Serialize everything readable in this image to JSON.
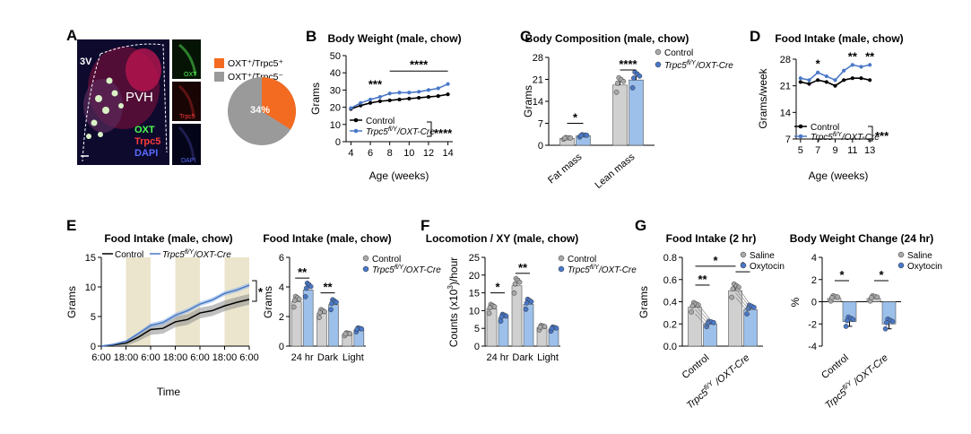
{
  "figure": {
    "colors": {
      "control": "#000000",
      "cre": "#4a78c8",
      "cre_fill": "#9cc0ea",
      "bar_gray": "#d0d0d0",
      "dot_gray": "#a9a9a9",
      "shade": "#ece5cd",
      "orange": "#f26b21",
      "pie_gray": "#9a9a9a"
    }
  },
  "panelA": {
    "letter": "A",
    "labels": {
      "v3": "3V",
      "pvh": "PVH",
      "oxt": "OXT",
      "trpc5": "Trpc5",
      "dapi": "DAPI",
      "thumb_oxt": "OXT",
      "thumb_trpc5": "Trpc5",
      "thumb_dapi": "DAPI"
    },
    "pie": {
      "legend_pos": "OXT⁺/Trpc5⁺",
      "legend_neg": "OXT⁺/Trpc5⁻",
      "pos_percent": 34,
      "pos_label": "34%"
    }
  },
  "chart_data": [
    {
      "id": "B",
      "type": "line",
      "letter": "B",
      "title": "Body Weight (male, chow)",
      "xlabel": "Age (weeks)",
      "ylabel": "Grams",
      "x": [
        4,
        5,
        6,
        7,
        8,
        9,
        10,
        11,
        12,
        13,
        14
      ],
      "xlim": [
        3.5,
        14.5
      ],
      "ylim": [
        0,
        50
      ],
      "xticks": [
        "4",
        "6",
        "8",
        "10",
        "12",
        "14"
      ],
      "yticks": [
        "0",
        "10",
        "20",
        "30",
        "40",
        "50"
      ],
      "series": [
        {
          "name": "Control",
          "values": [
            19,
            21,
            22.5,
            23.5,
            24,
            24.5,
            25,
            25.5,
            26,
            26.5,
            27.5
          ]
        },
        {
          "name": "Trpc5fl/Y/OXT-Cre",
          "prefix": "Trpc5",
          "sup": "fl/Y",
          "suffix": "/OXT-Cre",
          "values": [
            19.5,
            22.5,
            24.5,
            26,
            28,
            28.5,
            28.5,
            29,
            30,
            31,
            33.5
          ]
        }
      ],
      "annotations": {
        "early": "***",
        "range": "****",
        "overall": "****"
      },
      "legend": "bottom-left"
    },
    {
      "id": "C",
      "type": "bar",
      "letter": "C",
      "title": "Body Composition (male, chow)",
      "ylabel": "Grams",
      "categories": [
        "Fat mass",
        "Lean mass"
      ],
      "ylim": [
        0,
        28
      ],
      "yticks": [
        "0",
        "7",
        "14",
        "21",
        "28"
      ],
      "series": [
        {
          "name": "Control",
          "values": [
            2.2,
            19.2
          ]
        },
        {
          "name": "Trpc5fl/Y/OXT-Cre",
          "prefix": "Trpc5",
          "sup": "fl/Y",
          "suffix": "/OXT-Cre",
          "values": [
            3.0,
            20.8
          ]
        }
      ],
      "annotations": {
        "fat": "*",
        "lean": "****"
      },
      "legend": "top-right"
    },
    {
      "id": "D",
      "type": "line",
      "letter": "D",
      "title": "Food Intake (male, chow)",
      "xlabel": "Age (weeks)",
      "ylabel": "Grams/week",
      "x": [
        5,
        6,
        7,
        8,
        9,
        10,
        11,
        12,
        13
      ],
      "xlim": [
        4.5,
        13.5
      ],
      "ylim": [
        7,
        28
      ],
      "xticks": [
        "5",
        "7",
        "9",
        "11",
        "13"
      ],
      "yticks": [
        "7",
        "14",
        "21",
        "28"
      ],
      "series": [
        {
          "name": "Control",
          "values": [
            22,
            21.5,
            22.5,
            22,
            21,
            22.5,
            23,
            23,
            22.5
          ]
        },
        {
          "name": "Trpc5fl/Y/OXT-Cre",
          "prefix": "Trpc5",
          "sup": "fl/Y",
          "suffix": "/OXT-Cre",
          "values": [
            23,
            22.5,
            24.5,
            23.5,
            22.5,
            25,
            26.5,
            26,
            26.5
          ]
        }
      ],
      "annotations": {
        "w7": "*",
        "w11": "**",
        "w13": "**",
        "overall": "***"
      },
      "legend": "bottom-left"
    },
    {
      "id": "E1",
      "type": "area",
      "letter": "E",
      "title": "Food Intake (male, chow)",
      "xlabel": "Time",
      "ylabel": "Grams",
      "x": [
        0,
        6,
        12,
        18,
        24,
        30,
        36,
        42,
        48,
        54,
        60,
        66,
        72
      ],
      "xlim": [
        0,
        72
      ],
      "ylim": [
        0,
        15
      ],
      "xticks": [
        "6:00",
        "18:00",
        "6:00",
        "18:00",
        "6:00",
        "18:00",
        "6:00"
      ],
      "yticks": [
        "0",
        "5",
        "10",
        "15"
      ],
      "dark_phases": [
        [
          12,
          24
        ],
        [
          36,
          48
        ],
        [
          60,
          72
        ]
      ],
      "series": [
        {
          "name": "Control",
          "values": [
            0,
            0.2,
            0.5,
            1.5,
            2.8,
            3.0,
            4.1,
            4.5,
            5.6,
            6.0,
            6.8,
            7.4,
            7.9
          ],
          "sem": 0.9
        },
        {
          "name": "Trpc5fl/Y/OXT-Cre",
          "prefix": "Trpc5",
          "sup": "fl/Y",
          "suffix": "/OXT-Cre",
          "values": [
            0,
            0.3,
            0.8,
            2.1,
            3.5,
            4.0,
            5.2,
            6.0,
            7.1,
            7.8,
            8.9,
            9.5,
            10.3
          ],
          "sem": 0.4
        }
      ],
      "annotations": {
        "overall": "*"
      },
      "legend": "top"
    },
    {
      "id": "E2",
      "type": "bar",
      "title": "Food Intake (male, chow)",
      "ylabel": "Grams",
      "categories": [
        "24 hr",
        "Dark",
        "Light"
      ],
      "ylim": [
        0,
        6
      ],
      "yticks": [
        "0",
        "2",
        "4",
        "6"
      ],
      "series": [
        {
          "name": "Control",
          "values": [
            3.0,
            2.2,
            0.8
          ]
        },
        {
          "name": "Trpc5fl/Y/OXT-Cre",
          "prefix": "Trpc5",
          "sup": "fl/Y",
          "suffix": "/OXT-Cre",
          "values": [
            3.8,
            2.8,
            1.1
          ]
        }
      ],
      "annotations": {
        "hr24": "**",
        "dark": "**"
      },
      "legend": "top-right"
    },
    {
      "id": "F",
      "type": "bar",
      "letter": "F",
      "title": "Locomotion / XY (male, chow)",
      "ylabel_prefix": "Counts (x10",
      "ylabel_sup": "3",
      "ylabel_suffix": ")/hour",
      "categories": [
        "24 hr",
        "Dark",
        "Light"
      ],
      "ylim": [
        0,
        25
      ],
      "yticks": [
        "0",
        "5",
        "10",
        "15",
        "20",
        "25"
      ],
      "series": [
        {
          "name": "Control",
          "values": [
            10.5,
            17,
            5.2
          ]
        },
        {
          "name": "Trpc5fl/Y/OXT-Cre",
          "prefix": "Trpc5",
          "sup": "fl/Y",
          "suffix": "/OXT-Cre",
          "values": [
            8,
            11.8,
            4.8
          ]
        }
      ],
      "annotations": {
        "hr24": "*",
        "dark": "**"
      },
      "legend": "top-right"
    },
    {
      "id": "G1",
      "type": "bar",
      "letter": "G",
      "title": "Food Intake (2 hr)",
      "ylabel": "Grams",
      "categories": [
        "Control",
        "Trpc5fl/Y/OXT-Cre"
      ],
      "ylim": [
        0,
        0.8
      ],
      "yticks": [
        "0.0",
        "0.2",
        "0.4",
        "0.6",
        "0.8"
      ],
      "series": [
        {
          "name": "Saline",
          "values": [
            0.35,
            0.5
          ]
        },
        {
          "name": "Oxytocin",
          "values": [
            0.2,
            0.33
          ]
        }
      ],
      "annotations": {
        "ctrl": "**",
        "cre": "*",
        "between": "*"
      },
      "legend": "top-right"
    },
    {
      "id": "G2",
      "type": "bar",
      "title": "Body Weight Change (24 hr)",
      "ylabel": "%",
      "categories": [
        "Control",
        "Trpc5fl/Y/OXT-Cre"
      ],
      "ylim": [
        -4,
        4
      ],
      "yticks": [
        "-4",
        "-2",
        "0",
        "2",
        "4"
      ],
      "series": [
        {
          "name": "Saline",
          "values": [
            0.3,
            0.3
          ]
        },
        {
          "name": "Oxytocin",
          "values": [
            -1.8,
            -2.0
          ]
        }
      ],
      "annotations": {
        "ctrl": "*",
        "cre": "*"
      },
      "legend": "top-right"
    }
  ]
}
